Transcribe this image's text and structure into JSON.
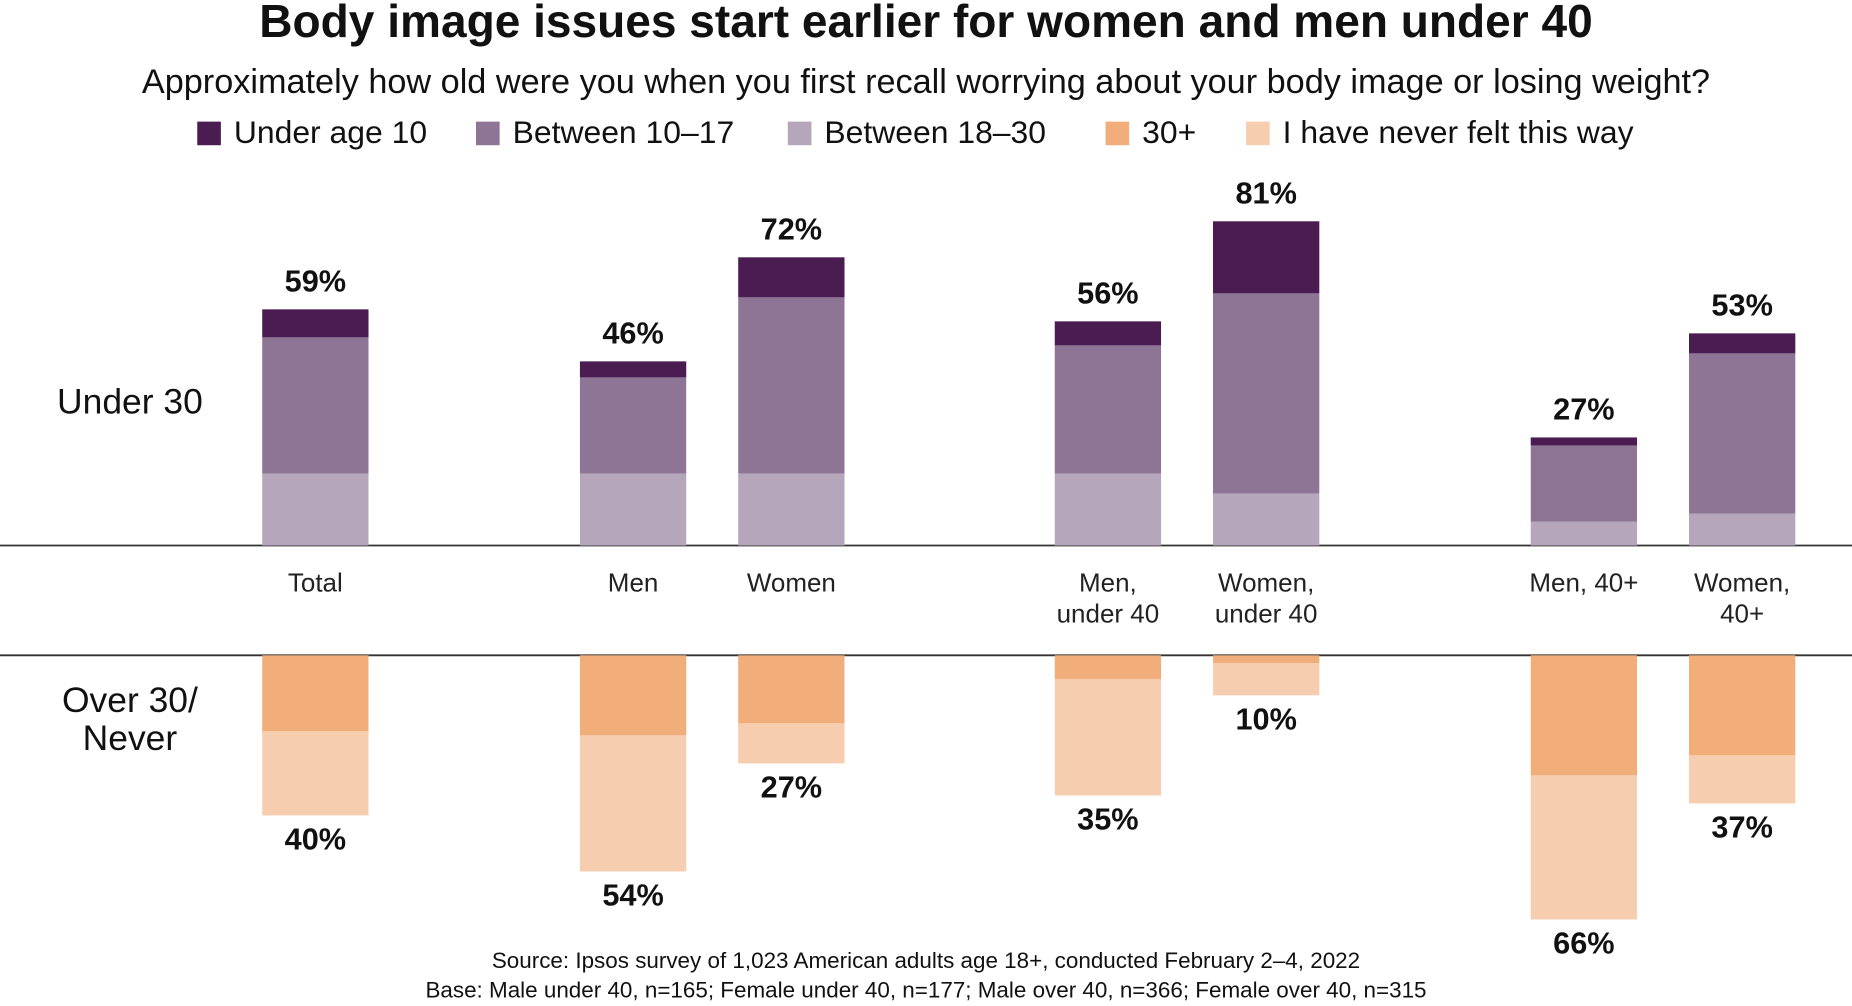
{
  "chart_data": {
    "type": "diverging_stacked_bar",
    "title": "Body image issues start earlier for women and men under 40",
    "subtitle": "Approximately how old were you when you first recall worrying about your body image or losing weight?",
    "row_labels": [
      "Under 30",
      "Over 30/\nNever"
    ],
    "categories": [
      "Total",
      "Men",
      "Women",
      "Men,\nunder 40",
      "Women,\nunder 40",
      "Men, 40+",
      "Women,\n40+"
    ],
    "series": [
      {
        "name": "Under age 10",
        "color": "#4a1c52",
        "side": "up",
        "values": [
          7,
          4,
          10,
          6,
          18,
          2,
          5
        ]
      },
      {
        "name": "Between 10–17",
        "color": "#8e7596",
        "side": "up",
        "values": [
          34,
          24,
          44,
          32,
          50,
          19,
          40
        ]
      },
      {
        "name": "Between 18–30",
        "color": "#b6a6bb",
        "side": "up",
        "values": [
          18,
          18,
          18,
          18,
          13,
          6,
          8
        ]
      },
      {
        "name": "30+",
        "color": "#f2ae7a",
        "side": "down",
        "values": [
          19,
          20,
          17,
          6,
          2,
          30,
          25
        ]
      },
      {
        "name": "I have never felt this way",
        "color": "#f7cdb0",
        "side": "down",
        "values": [
          21,
          34,
          10,
          29,
          8,
          36,
          12
        ]
      }
    ],
    "totals_up": {
      "values": [
        59,
        46,
        72,
        56,
        81,
        27,
        53
      ],
      "value_labels": [
        "59%",
        "46%",
        "72%",
        "56%",
        "81%",
        "27%",
        "53%"
      ]
    },
    "totals_down": {
      "values": [
        40,
        54,
        27,
        35,
        10,
        66,
        37
      ],
      "value_labels": [
        "40%",
        "54%",
        "27%",
        "35%",
        "10%",
        "66%",
        "37%"
      ]
    },
    "notes": [
      "Source: Ipsos survey of 1,023 American adults age 18+, conducted February 2–4, 2022",
      "Base: Male under 40, n=165; Female under 40, n=177; Male over 40, n=366; Female over 40, n=315"
    ]
  }
}
